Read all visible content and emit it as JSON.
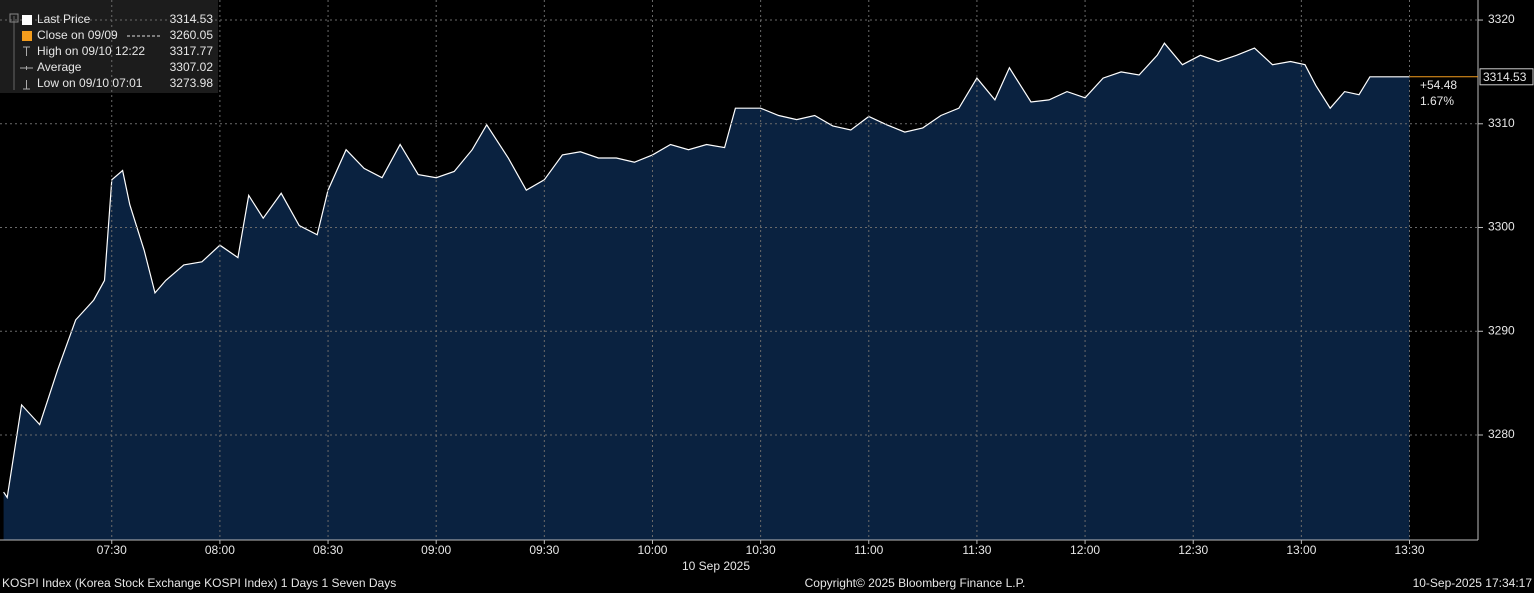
{
  "chart_data": {
    "type": "area",
    "title": "KOSPI Index (Korea Stock Exchange KOSPI Index) 1 Days 1 Seven Days",
    "date_label": "10 Sep 2025",
    "copyright": "Copyright© 2025 Bloomberg Finance L.P.",
    "timestamp": "10-Sep-2025 17:34:17",
    "legend": [
      {
        "name": "Last Price",
        "value": 3314.53,
        "color": "#ffffff"
      },
      {
        "name": "Close on 09/09",
        "value": 3260.05,
        "color": "#f39c1d"
      },
      {
        "name": "High on 09/10 12:22",
        "value": 3317.77
      },
      {
        "name": "Average",
        "value": 3307.02
      },
      {
        "name": "Low on 09/10 07:01",
        "value": 3273.98
      }
    ],
    "change": {
      "value": 54.48,
      "label": "+54.48"
    },
    "change_pct": {
      "value": 1.67,
      "label": "1.67%"
    },
    "change_color": "#f39c1d",
    "x": [
      "07:00",
      "07:01",
      "07:05",
      "07:10",
      "07:15",
      "07:20",
      "07:25",
      "07:28",
      "07:30",
      "07:33",
      "07:35",
      "07:39",
      "07:42",
      "07:45",
      "07:50",
      "07:55",
      "08:00",
      "08:05",
      "08:08",
      "08:12",
      "08:17",
      "08:22",
      "08:27",
      "08:30",
      "08:35",
      "08:40",
      "08:45",
      "08:50",
      "08:55",
      "09:00",
      "09:05",
      "09:10",
      "09:14",
      "09:20",
      "09:25",
      "09:30",
      "09:35",
      "09:40",
      "09:45",
      "09:50",
      "09:55",
      "10:00",
      "10:05",
      "10:10",
      "10:15",
      "10:20",
      "10:23",
      "10:30",
      "10:35",
      "10:40",
      "10:45",
      "10:50",
      "10:55",
      "11:00",
      "11:05",
      "11:10",
      "11:15",
      "11:20",
      "11:25",
      "11:30",
      "11:35",
      "11:39",
      "11:45",
      "11:50",
      "11:55",
      "12:00",
      "12:05",
      "12:10",
      "12:15",
      "12:20",
      "12:22",
      "12:27",
      "12:32",
      "12:37",
      "12:42",
      "12:47",
      "12:52",
      "12:57",
      "13:01",
      "13:04",
      "13:08",
      "13:12",
      "13:16",
      "13:19",
      "13:30"
    ],
    "series": [
      {
        "name": "Last Price",
        "color": "#ffffff",
        "fill": "#0a2240",
        "values": [
          3274.5,
          3273.98,
          3282.9,
          3281.0,
          3286.3,
          3291.1,
          3293.0,
          3294.9,
          3304.6,
          3305.5,
          3302.2,
          3297.8,
          3293.7,
          3294.9,
          3296.4,
          3296.7,
          3298.3,
          3297.1,
          3303.1,
          3300.9,
          3303.3,
          3300.2,
          3299.3,
          3303.6,
          3307.5,
          3305.7,
          3304.8,
          3308.0,
          3305.1,
          3304.8,
          3305.4,
          3307.5,
          3309.9,
          3306.7,
          3303.6,
          3304.6,
          3307.0,
          3307.3,
          3306.7,
          3306.7,
          3306.3,
          3307.0,
          3308.0,
          3307.5,
          3308.0,
          3307.7,
          3311.5,
          3311.5,
          3310.8,
          3310.4,
          3310.8,
          3309.8,
          3309.4,
          3310.7,
          3309.9,
          3309.2,
          3309.6,
          3310.8,
          3311.5,
          3314.4,
          3312.3,
          3315.4,
          3312.1,
          3312.3,
          3313.1,
          3312.5,
          3314.4,
          3315.0,
          3314.7,
          3316.6,
          3317.77,
          3315.7,
          3316.6,
          3316.0,
          3316.6,
          3317.3,
          3315.7,
          3316.0,
          3315.7,
          3313.7,
          3311.5,
          3313.1,
          3312.8,
          3314.53,
          3314.53
        ]
      }
    ],
    "xlim": [
      "06:59",
      "13:49"
    ],
    "xticks": [
      "07:30",
      "08:00",
      "08:30",
      "09:00",
      "09:30",
      "10:00",
      "10:30",
      "11:00",
      "11:30",
      "12:00",
      "12:30",
      "13:00",
      "13:30"
    ],
    "ylim": [
      3269.88,
      3321.45
    ],
    "yticks": [
      3280,
      3290,
      3300,
      3310,
      3320
    ],
    "grid": true
  }
}
